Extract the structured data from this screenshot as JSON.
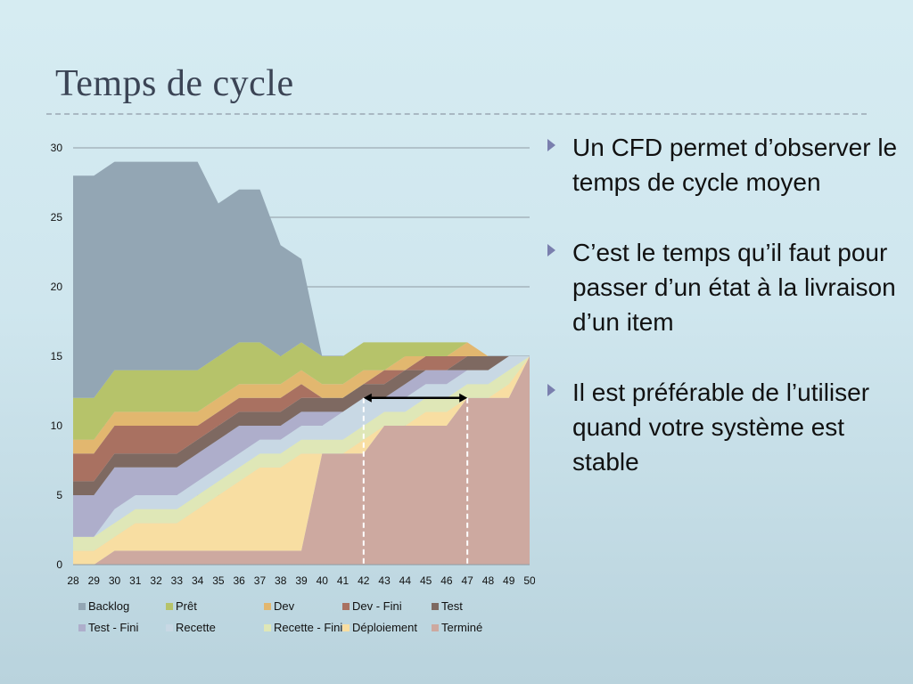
{
  "slide": {
    "title": "Temps de cycle"
  },
  "bullets": [
    "Un CFD permet d’observer le temps de cycle moyen",
    "C’est le temps qu’il faut pour passer d’un état à la livraison d’un item",
    "Il est préférable de l’utiliser quand votre système est stable"
  ],
  "chart_data": {
    "type": "area",
    "stacked": true,
    "x": [
      28,
      29,
      30,
      31,
      32,
      33,
      34,
      35,
      36,
      37,
      38,
      39,
      40,
      41,
      42,
      43,
      44,
      45,
      46,
      47,
      48,
      49,
      50
    ],
    "ylim": [
      0,
      30
    ],
    "yticks": [
      0,
      5,
      10,
      15,
      20,
      25,
      30
    ],
    "grid": true,
    "legend_position": "bottom",
    "series": [
      {
        "name": "Terminé",
        "color": "#cda9a0",
        "values": [
          0,
          0,
          1,
          1,
          1,
          1,
          1,
          1,
          1,
          1,
          1,
          1,
          8,
          8,
          8,
          10,
          10,
          10,
          10,
          12,
          12,
          12,
          15
        ]
      },
      {
        "name": "Déploiement",
        "color": "#f8dea2",
        "values": [
          1,
          1,
          1,
          2,
          2,
          2,
          3,
          4,
          5,
          6,
          6,
          7,
          0,
          0,
          1,
          0,
          0,
          1,
          1,
          0,
          0,
          1,
          0
        ]
      },
      {
        "name": "Recette - Fini",
        "color": "#dfe7b7",
        "values": [
          1,
          1,
          1,
          1,
          1,
          1,
          1,
          1,
          1,
          1,
          1,
          1,
          1,
          1,
          1,
          1,
          1,
          1,
          1,
          1,
          1,
          1,
          0
        ]
      },
      {
        "name": "Recette",
        "color": "#c8d8e4",
        "values": [
          0,
          0,
          1,
          1,
          1,
          1,
          1,
          1,
          1,
          1,
          1,
          1,
          1,
          2,
          2,
          1,
          1,
          1,
          1,
          1,
          1,
          1,
          0
        ]
      },
      {
        "name": "Test - Fini",
        "color": "#aeaecb",
        "values": [
          3,
          3,
          3,
          2,
          2,
          2,
          2,
          2,
          2,
          1,
          1,
          1,
          1,
          0,
          0,
          0,
          1,
          1,
          1,
          0,
          0,
          0,
          0
        ]
      },
      {
        "name": "Test",
        "color": "#7e6961",
        "values": [
          1,
          1,
          1,
          1,
          1,
          1,
          1,
          1,
          1,
          1,
          1,
          1,
          1,
          1,
          1,
          1,
          1,
          0,
          0,
          1,
          1,
          0,
          0
        ]
      },
      {
        "name": "Dev - Fini",
        "color": "#a97161",
        "values": [
          2,
          2,
          2,
          2,
          2,
          2,
          1,
          1,
          1,
          1,
          1,
          1,
          0,
          0,
          0,
          1,
          0,
          1,
          1,
          0,
          0,
          0,
          0
        ]
      },
      {
        "name": "Dev",
        "color": "#e2b76f",
        "values": [
          1,
          1,
          1,
          1,
          1,
          1,
          1,
          1,
          1,
          1,
          1,
          1,
          1,
          1,
          1,
          0,
          1,
          0,
          0,
          1,
          0,
          0,
          0
        ]
      },
      {
        "name": "Prêt",
        "color": "#b6c36a",
        "values": [
          3,
          3,
          3,
          3,
          3,
          3,
          3,
          3,
          3,
          3,
          2,
          2,
          2,
          2,
          2,
          2,
          1,
          1,
          1,
          0,
          0,
          0,
          0
        ]
      },
      {
        "name": "Backlog",
        "color": "#93a6b4",
        "values": [
          16,
          16,
          15,
          15,
          15,
          15,
          15,
          11,
          11,
          11,
          8,
          6,
          0,
          0,
          0,
          0,
          0,
          0,
          0,
          0,
          0,
          0,
          0
        ]
      }
    ],
    "annotation": {
      "y": 12,
      "x_start": 42,
      "x_end": 47
    }
  },
  "legend_order": [
    "Backlog",
    "Prêt",
    "Dev",
    "Dev - Fini",
    "Test",
    "Test - Fini",
    "Recette",
    "Recette - Fini",
    "Déploiement",
    "Terminé"
  ]
}
